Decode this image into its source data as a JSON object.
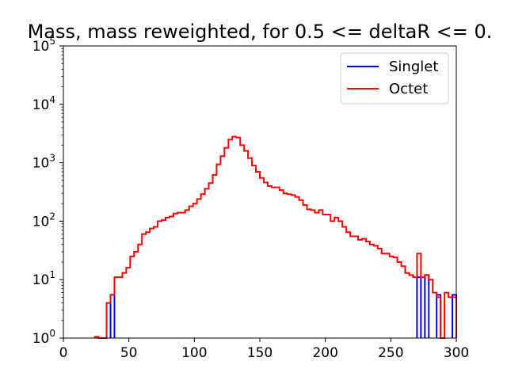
{
  "chart_data": {
    "type": "histogram",
    "title": "Mass, mass reweighted, for 0.5 <= deltaR <= 0.",
    "xlabel": "",
    "ylabel": "",
    "xlim": [
      0,
      300
    ],
    "ylim": [
      1,
      100000
    ],
    "yscale": "log",
    "grid": false,
    "legend_position": "top-right",
    "bin_width": 3,
    "x_ticks": [
      "0",
      "50",
      "100",
      "150",
      "200",
      "250",
      "300"
    ],
    "y_ticks": [
      {
        "base": "10",
        "exp": "0"
      },
      {
        "base": "10",
        "exp": "1"
      },
      {
        "base": "10",
        "exp": "2"
      },
      {
        "base": "10",
        "exp": "3"
      },
      {
        "base": "10",
        "exp": "4"
      },
      {
        "base": "10",
        "exp": "5"
      }
    ],
    "series": [
      {
        "name": "Singlet",
        "color": "#0000ff",
        "bins": [
          {
            "x0": 36,
            "x1": 39,
            "y": 5.5
          },
          {
            "x0": 270,
            "x1": 273,
            "y": 11
          },
          {
            "x0": 276,
            "x1": 279,
            "y": 12
          },
          {
            "x0": 285,
            "x1": 288,
            "y": 5.5
          },
          {
            "x0": 297,
            "x1": 300,
            "y": 5.5
          }
        ]
      },
      {
        "name": "Octet",
        "color": "#ff0000",
        "x_edges": [
          24,
          27,
          30,
          33,
          36,
          39,
          42,
          45,
          48,
          51,
          54,
          57,
          60,
          63,
          66,
          69,
          72,
          75,
          78,
          81,
          84,
          87,
          90,
          93,
          96,
          99,
          102,
          105,
          108,
          111,
          114,
          117,
          120,
          123,
          126,
          129,
          132,
          135,
          138,
          141,
          144,
          147,
          150,
          153,
          156,
          159,
          162,
          165,
          168,
          171,
          174,
          177,
          180,
          183,
          186,
          189,
          192,
          195,
          198,
          201,
          204,
          207,
          210,
          213,
          216,
          219,
          222,
          225,
          228,
          231,
          234,
          237,
          240,
          243,
          246,
          249,
          252,
          255,
          258,
          261,
          264,
          267,
          270,
          273,
          276,
          279,
          282,
          285,
          288,
          291,
          294,
          297
        ],
        "y_values": [
          1.05,
          1,
          1,
          4,
          5.5,
          11,
          11,
          13,
          16,
          25,
          30,
          40,
          60,
          65,
          75,
          80,
          100,
          105,
          115,
          120,
          135,
          140,
          140,
          155,
          180,
          200,
          240,
          290,
          360,
          450,
          620,
          940,
          1300,
          1800,
          2500,
          2800,
          2700,
          2000,
          1600,
          1200,
          900,
          700,
          550,
          460,
          400,
          380,
          380,
          340,
          300,
          290,
          280,
          260,
          230,
          190,
          160,
          155,
          140,
          155,
          130,
          130,
          100,
          115,
          100,
          80,
          65,
          55,
          55,
          48,
          50,
          45,
          40,
          38,
          34,
          28,
          28,
          25,
          24,
          20,
          17,
          13,
          12,
          11,
          28,
          11,
          12,
          10,
          6,
          5,
          1,
          6,
          5,
          5
        ],
        "x_end": 300
      }
    ]
  }
}
